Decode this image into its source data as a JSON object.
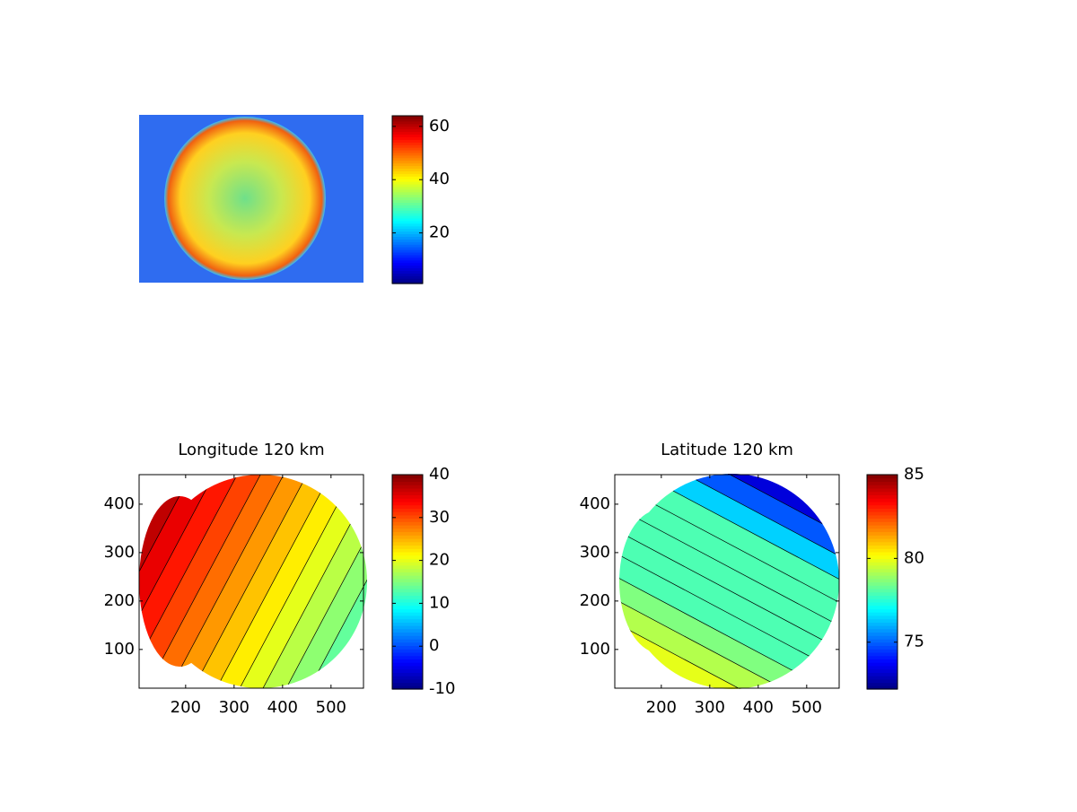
{
  "chart_data": [
    {
      "type": "image",
      "colormap": "jet",
      "clim": [
        1,
        64
      ],
      "colorbar_ticks": [
        20,
        40,
        60
      ]
    },
    {
      "type": "contour",
      "title": "Longitude 120 km",
      "colormap": "jet",
      "xlim": [
        104,
        567
      ],
      "xticks": [
        200,
        300,
        400,
        500
      ],
      "ylim": [
        20,
        461
      ],
      "yticks": [
        100,
        200,
        300,
        400
      ],
      "clim": [
        -10,
        40
      ],
      "colorbar_ticks": [
        -10,
        0,
        10,
        20,
        30,
        40
      ]
    },
    {
      "type": "contour",
      "title": "Latitude 120 km",
      "colormap": "jet",
      "xlim": [
        104,
        567
      ],
      "xticks": [
        200,
        300,
        400,
        500
      ],
      "ylim": [
        20,
        461
      ],
      "yticks": [
        100,
        200,
        300,
        400
      ],
      "clim": [
        72.2,
        85
      ],
      "colorbar_ticks": [
        75,
        80,
        85
      ]
    }
  ]
}
